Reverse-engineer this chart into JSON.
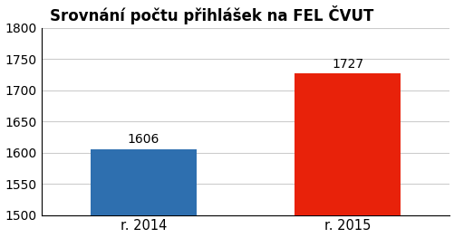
{
  "categories": [
    "r. 2014",
    "r. 2015"
  ],
  "values": [
    1606,
    1727
  ],
  "bar_colors": [
    "#2e6faf",
    "#e8220a"
  ],
  "bar_labels": [
    "1606",
    "1727"
  ],
  "title": "Srovnání počtu přihlášek na FEL ČVUT",
  "ylim": [
    1500,
    1800
  ],
  "yticks": [
    1500,
    1550,
    1600,
    1650,
    1700,
    1750,
    1800
  ],
  "title_fontsize": 12,
  "label_fontsize": 10.5,
  "tick_fontsize": 10,
  "bar_label_fontsize": 10,
  "background_color": "#ffffff",
  "grid_color": "#cccccc"
}
